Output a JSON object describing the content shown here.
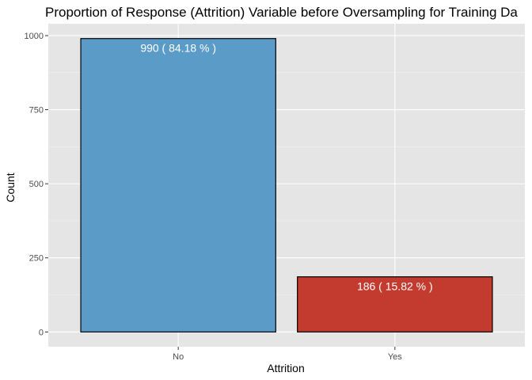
{
  "chart_data": {
    "type": "bar",
    "title": "Proportion of Response (Attrition) Variable before Oversampling for Training Da",
    "xlabel": "Attrition",
    "ylabel": "Count",
    "categories": [
      "No",
      "Yes"
    ],
    "values": [
      990,
      186
    ],
    "data_labels": [
      "990 ( 84.18 % )",
      "186 ( 15.82 % )"
    ],
    "bar_colors": [
      "#5b9bc8",
      "#c23b2e"
    ],
    "ylim": [
      -50,
      1040
    ],
    "yticks": [
      0,
      250,
      500,
      750,
      1000
    ],
    "ytick_labels": [
      "0",
      "250",
      "500",
      "750",
      "1000"
    ],
    "grid": true,
    "panel_background": "#e5e5e5"
  }
}
